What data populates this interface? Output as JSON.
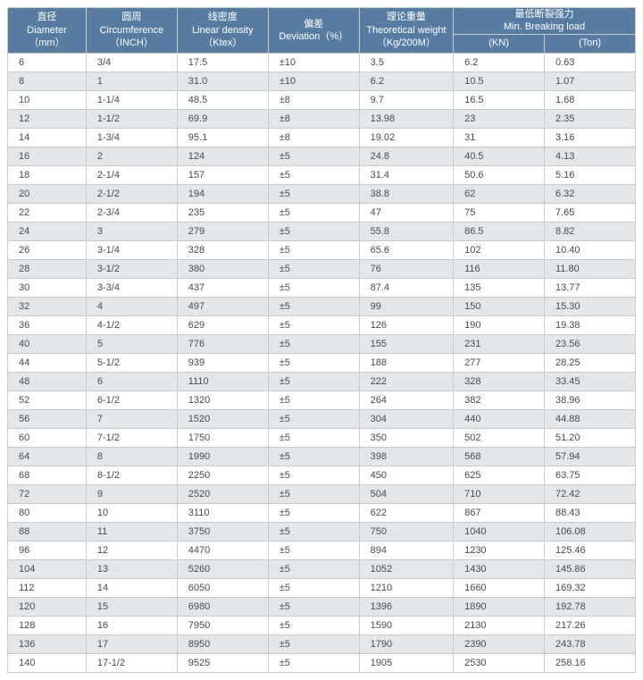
{
  "header": {
    "diameter": {
      "cn": "直径",
      "en": "Diameter",
      "unit": "（mm）"
    },
    "circumference": {
      "cn": "圆周",
      "en": "Circumference",
      "unit": "（INCH）"
    },
    "density": {
      "cn": "线密度",
      "en": "Linear density",
      "unit": "（Ktex）"
    },
    "deviation": {
      "cn": "偏差",
      "en": "Deviation（%）"
    },
    "weight": {
      "cn": "理论重量",
      "en": "Theoretical weight",
      "unit": "（Kg/200M）"
    },
    "breaking": {
      "cn": "最低断裂强力",
      "en": "Min. Breaking load"
    },
    "kn": "(KN)",
    "ton": "(Ton)"
  },
  "rows": [
    {
      "d": "6",
      "c": "3/4",
      "ld": "17.5",
      "dev": "±10",
      "w": "3.5",
      "kn": "6.2",
      "t": "0.63"
    },
    {
      "d": "8",
      "c": "1",
      "ld": "31.0",
      "dev": "±10",
      "w": "6.2",
      "kn": "10.5",
      "t": "1.07"
    },
    {
      "d": "10",
      "c": "1-1/4",
      "ld": "48.5",
      "dev": "±8",
      "w": "9.7",
      "kn": "16.5",
      "t": "1.68"
    },
    {
      "d": "12",
      "c": "1-1/2",
      "ld": "69.9",
      "dev": "±8",
      "w": "13.98",
      "kn": "23",
      "t": "2.35"
    },
    {
      "d": "14",
      "c": "1-3/4",
      "ld": "95.1",
      "dev": "±8",
      "w": "19.02",
      "kn": "31",
      "t": "3.16"
    },
    {
      "d": "16",
      "c": "2",
      "ld": "124",
      "dev": "±5",
      "w": "24.8",
      "kn": "40.5",
      "t": "4.13"
    },
    {
      "d": "18",
      "c": "2-1/4",
      "ld": "157",
      "dev": "±5",
      "w": "31.4",
      "kn": "50.6",
      "t": "5.16"
    },
    {
      "d": "20",
      "c": "2-1/2",
      "ld": "194",
      "dev": "±5",
      "w": "38.8",
      "kn": "62",
      "t": "6.32"
    },
    {
      "d": "22",
      "c": "2-3/4",
      "ld": "235",
      "dev": "±5",
      "w": "47",
      "kn": "75",
      "t": "7.65"
    },
    {
      "d": "24",
      "c": "3",
      "ld": "279",
      "dev": "±5",
      "w": "55.8",
      "kn": "86.5",
      "t": "8.82"
    },
    {
      "d": "26",
      "c": "3-1/4",
      "ld": "328",
      "dev": "±5",
      "w": "65.6",
      "kn": "102",
      "t": "10.40"
    },
    {
      "d": "28",
      "c": "3-1/2",
      "ld": "380",
      "dev": "±5",
      "w": "76",
      "kn": "116",
      "t": "11.80"
    },
    {
      "d": "30",
      "c": "3-3/4",
      "ld": "437",
      "dev": "±5",
      "w": "87.4",
      "kn": "135",
      "t": "13.77"
    },
    {
      "d": "32",
      "c": "4",
      "ld": "497",
      "dev": "±5",
      "w": "99",
      "kn": "150",
      "t": "15.30"
    },
    {
      "d": "36",
      "c": "4-1/2",
      "ld": "629",
      "dev": "±5",
      "w": "126",
      "kn": "190",
      "t": "19.38"
    },
    {
      "d": "40",
      "c": "5",
      "ld": "776",
      "dev": "±5",
      "w": "155",
      "kn": "231",
      "t": "23.56"
    },
    {
      "d": "44",
      "c": "5-1/2",
      "ld": "939",
      "dev": "±5",
      "w": "188",
      "kn": "277",
      "t": "28.25"
    },
    {
      "d": "48",
      "c": "6",
      "ld": "1110",
      "dev": "±5",
      "w": "222",
      "kn": "328",
      "t": "33.45"
    },
    {
      "d": "52",
      "c": "6-1/2",
      "ld": "1320",
      "dev": "±5",
      "w": "264",
      "kn": "382",
      "t": "38.96"
    },
    {
      "d": "56",
      "c": "7",
      "ld": "1520",
      "dev": "±5",
      "w": "304",
      "kn": "440",
      "t": "44.88"
    },
    {
      "d": "60",
      "c": "7-1/2",
      "ld": "1750",
      "dev": "±5",
      "w": "350",
      "kn": "502",
      "t": "51.20"
    },
    {
      "d": "64",
      "c": "8",
      "ld": "1990",
      "dev": "±5",
      "w": "398",
      "kn": "568",
      "t": "57.94"
    },
    {
      "d": "68",
      "c": "8-1/2",
      "ld": "2250",
      "dev": "±5",
      "w": "450",
      "kn": "625",
      "t": "63.75"
    },
    {
      "d": "72",
      "c": "9",
      "ld": "2520",
      "dev": "±5",
      "w": "504",
      "kn": "710",
      "t": "72.42"
    },
    {
      "d": "80",
      "c": "10",
      "ld": "3110",
      "dev": "±5",
      "w": "622",
      "kn": "867",
      "t": "88.43"
    },
    {
      "d": "88",
      "c": "11",
      "ld": "3750",
      "dev": "±5",
      "w": "750",
      "kn": "1040",
      "t": "106.08"
    },
    {
      "d": "96",
      "c": "12",
      "ld": "4470",
      "dev": "±5",
      "w": "894",
      "kn": "1230",
      "t": "125.46"
    },
    {
      "d": "104",
      "c": "13",
      "ld": "5260",
      "dev": "±5",
      "w": "1052",
      "kn": "1430",
      "t": "145.86"
    },
    {
      "d": "112",
      "c": "14",
      "ld": "6050",
      "dev": "±5",
      "w": "1210",
      "kn": "1660",
      "t": "169.32"
    },
    {
      "d": "120",
      "c": "15",
      "ld": "6980",
      "dev": "±5",
      "w": "1396",
      "kn": "1890",
      "t": "192.78"
    },
    {
      "d": "128",
      "c": "16",
      "ld": "7950",
      "dev": "±5",
      "w": "1590",
      "kn": "2130",
      "t": "217.26"
    },
    {
      "d": "136",
      "c": "17",
      "ld": "8950",
      "dev": "±5",
      "w": "1790",
      "kn": "2390",
      "t": "243.78"
    },
    {
      "d": "140",
      "c": "17-1/2",
      "ld": "9525",
      "dev": "±5",
      "w": "1905",
      "kn": "2530",
      "t": "258.16"
    }
  ],
  "style": {
    "header_bg": "#587ba1",
    "header_fg": "#ffffff",
    "row_alt_bg": "#e4e7ea",
    "row_bg": "#ffffff",
    "border": "#c9cccf",
    "text": "#4a4a4a"
  }
}
